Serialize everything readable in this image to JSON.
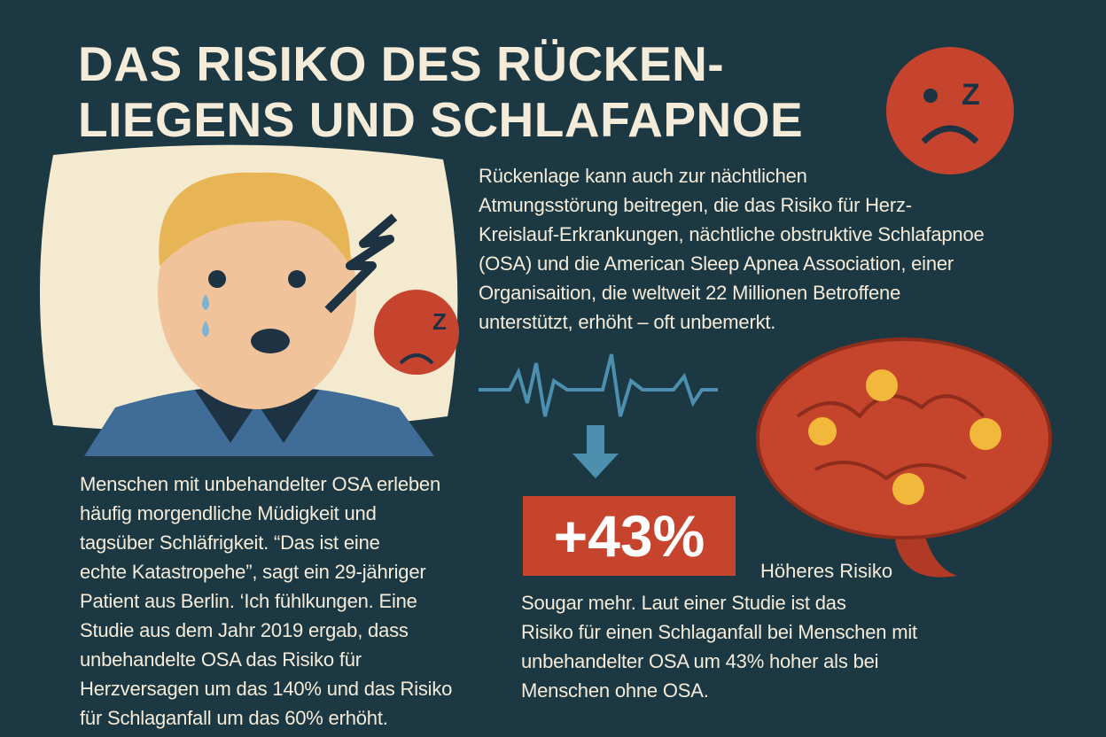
{
  "header": {
    "title_lines": [
      "DAS RISIKO DES RÜCKEN-",
      "LIEGENS UND SCHLAFAPNOE"
    ]
  },
  "intro": {
    "lines": [
      "Rückenlage kann auch zur nächtlichen",
      "Atmungsstörung beitregen, die das Risiko für Herz-",
      "Kreislauf-Erkrankungen, nächtliche obstruktive Schlafapnoe",
      "(OSA) und die American Sleep Apnea Association, einer",
      "Organisaition, die weltweit 22 Millionen Betroffene",
      "unterstützt, erhöht – oft unbemerkt."
    ]
  },
  "left_text": {
    "lines": [
      "Menschen mit unbehandelter OSA erleben",
      "häufig morgendliche Müdigkeit und",
      "tagsüber Schläfrigkeit. “Das ist eine",
      "echte Katastropehe”, sagt ein 29-jähriger",
      "Patient aus Berlin. ‘Ich fühlkungen. Eine",
      "Studie aus dem Jahr 2019 ergab, dass",
      "unbehandelte OSA das Risiko für",
      "Herzversagen um das 140% und das Risiko",
      "für Schlaganfall um das 60% erhöht."
    ]
  },
  "stat": {
    "value": "+43%",
    "label": "Höheres Risiko"
  },
  "right_text": {
    "lines": [
      "Sougar mehr. Laut einer Studie ist das",
      "Risiko für einen Schlaganfall bei Menschen mit",
      "unbehandelter OSA um 43% hoher als bei",
      "Menschen ohne OSA."
    ]
  },
  "icons": {
    "z": "Z"
  }
}
